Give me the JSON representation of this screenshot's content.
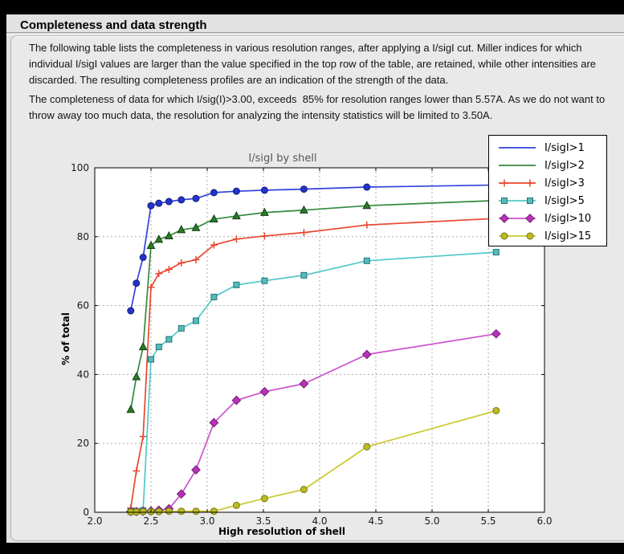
{
  "page": {
    "heading": "Completeness and data strength",
    "paragraph1": "The following table lists the completeness in various resolution ranges, after applying a I/sigI cut. Miller indices for which individual I/sigI values are larger than the value specified in the top row of the table, are retained, while other intensities are discarded. The resulting completeness profiles are an indication of the strength of the data.",
    "paragraph2": "The completeness of data for which I/sig(I)>3.00, exceeds  85% for resolution ranges lower than 5.57A. As we do not want to throw away too much data, the resolution for analyzing the intensity statistics will be limited to 3.50A."
  },
  "chart_data": {
    "type": "line",
    "title": "I/sigI by shell",
    "xlabel": "High resolution of shell",
    "ylabel": "% of total",
    "xlim": [
      2.0,
      6.0
    ],
    "ylim": [
      0,
      100
    ],
    "xticks": [
      2.0,
      2.5,
      3.0,
      3.5,
      4.0,
      4.5,
      5.0,
      5.5,
      6.0
    ],
    "yticks": [
      0,
      20,
      40,
      60,
      80,
      100
    ],
    "grid": "dashed",
    "legend_position": "upper right",
    "plot_background": "#ffffff",
    "grid_color": "#ababab",
    "x": [
      2.32,
      2.37,
      2.43,
      2.5,
      2.57,
      2.66,
      2.77,
      2.9,
      3.06,
      3.26,
      3.51,
      3.86,
      4.42,
      5.57
    ],
    "series": [
      {
        "name": "I/sigI>1",
        "marker": "circle",
        "legend_marker": false,
        "color": "#3340dd",
        "marker_fill": "#2433cc",
        "marker_edge": "#141f77",
        "values": [
          58.5,
          66.5,
          74.0,
          89.0,
          89.7,
          90.2,
          90.7,
          91.1,
          92.8,
          93.2,
          93.5,
          93.8,
          94.4,
          95.0
        ]
      },
      {
        "name": "I/sigI>2",
        "marker": "triangle",
        "legend_marker": false,
        "color": "#348a3c",
        "marker_fill": "#2a7a2a",
        "marker_edge": "#123f12",
        "values": [
          29.8,
          39.3,
          48.0,
          77.4,
          79.2,
          80.2,
          82.0,
          82.6,
          85.1,
          86.0,
          87.0,
          87.7,
          89.0,
          90.5
        ]
      },
      {
        "name": "I/sigI>3",
        "marker": "plus",
        "legend_marker": true,
        "color": "#e84630",
        "marker_fill": "#e84630",
        "marker_edge": "#e84630",
        "values": [
          1.2,
          12.0,
          22.0,
          65.3,
          69.3,
          70.5,
          72.4,
          73.3,
          77.6,
          79.3,
          80.2,
          81.2,
          83.4,
          85.3
        ]
      },
      {
        "name": "I/sigI>5",
        "marker": "square",
        "legend_marker": true,
        "color": "#52c8c8",
        "marker_fill": "#5ab8b8",
        "marker_edge": "#1e7878",
        "values": [
          0.2,
          0.3,
          0.5,
          44.4,
          48.0,
          50.2,
          53.4,
          55.6,
          62.5,
          66.0,
          67.2,
          68.8,
          73.0,
          75.5
        ]
      },
      {
        "name": "I/sigI>10",
        "marker": "diamond",
        "legend_marker": true,
        "color": "#cc52cc",
        "marker_fill": "#b832b8",
        "marker_edge": "#701d70",
        "values": [
          0.2,
          0.2,
          0.3,
          0.4,
          0.6,
          1.0,
          5.3,
          12.3,
          26.0,
          32.5,
          35.0,
          37.3,
          45.8,
          51.8
        ]
      },
      {
        "name": "I/sigI>15",
        "marker": "circle",
        "legend_marker": true,
        "color": "#c9c92e",
        "marker_fill": "#bcbc20",
        "marker_edge": "#76761a",
        "values": [
          0.1,
          0.1,
          0.2,
          0.2,
          0.2,
          0.3,
          0.3,
          0.3,
          0.3,
          2.0,
          4.0,
          6.6,
          19.0,
          29.5
        ]
      }
    ]
  }
}
